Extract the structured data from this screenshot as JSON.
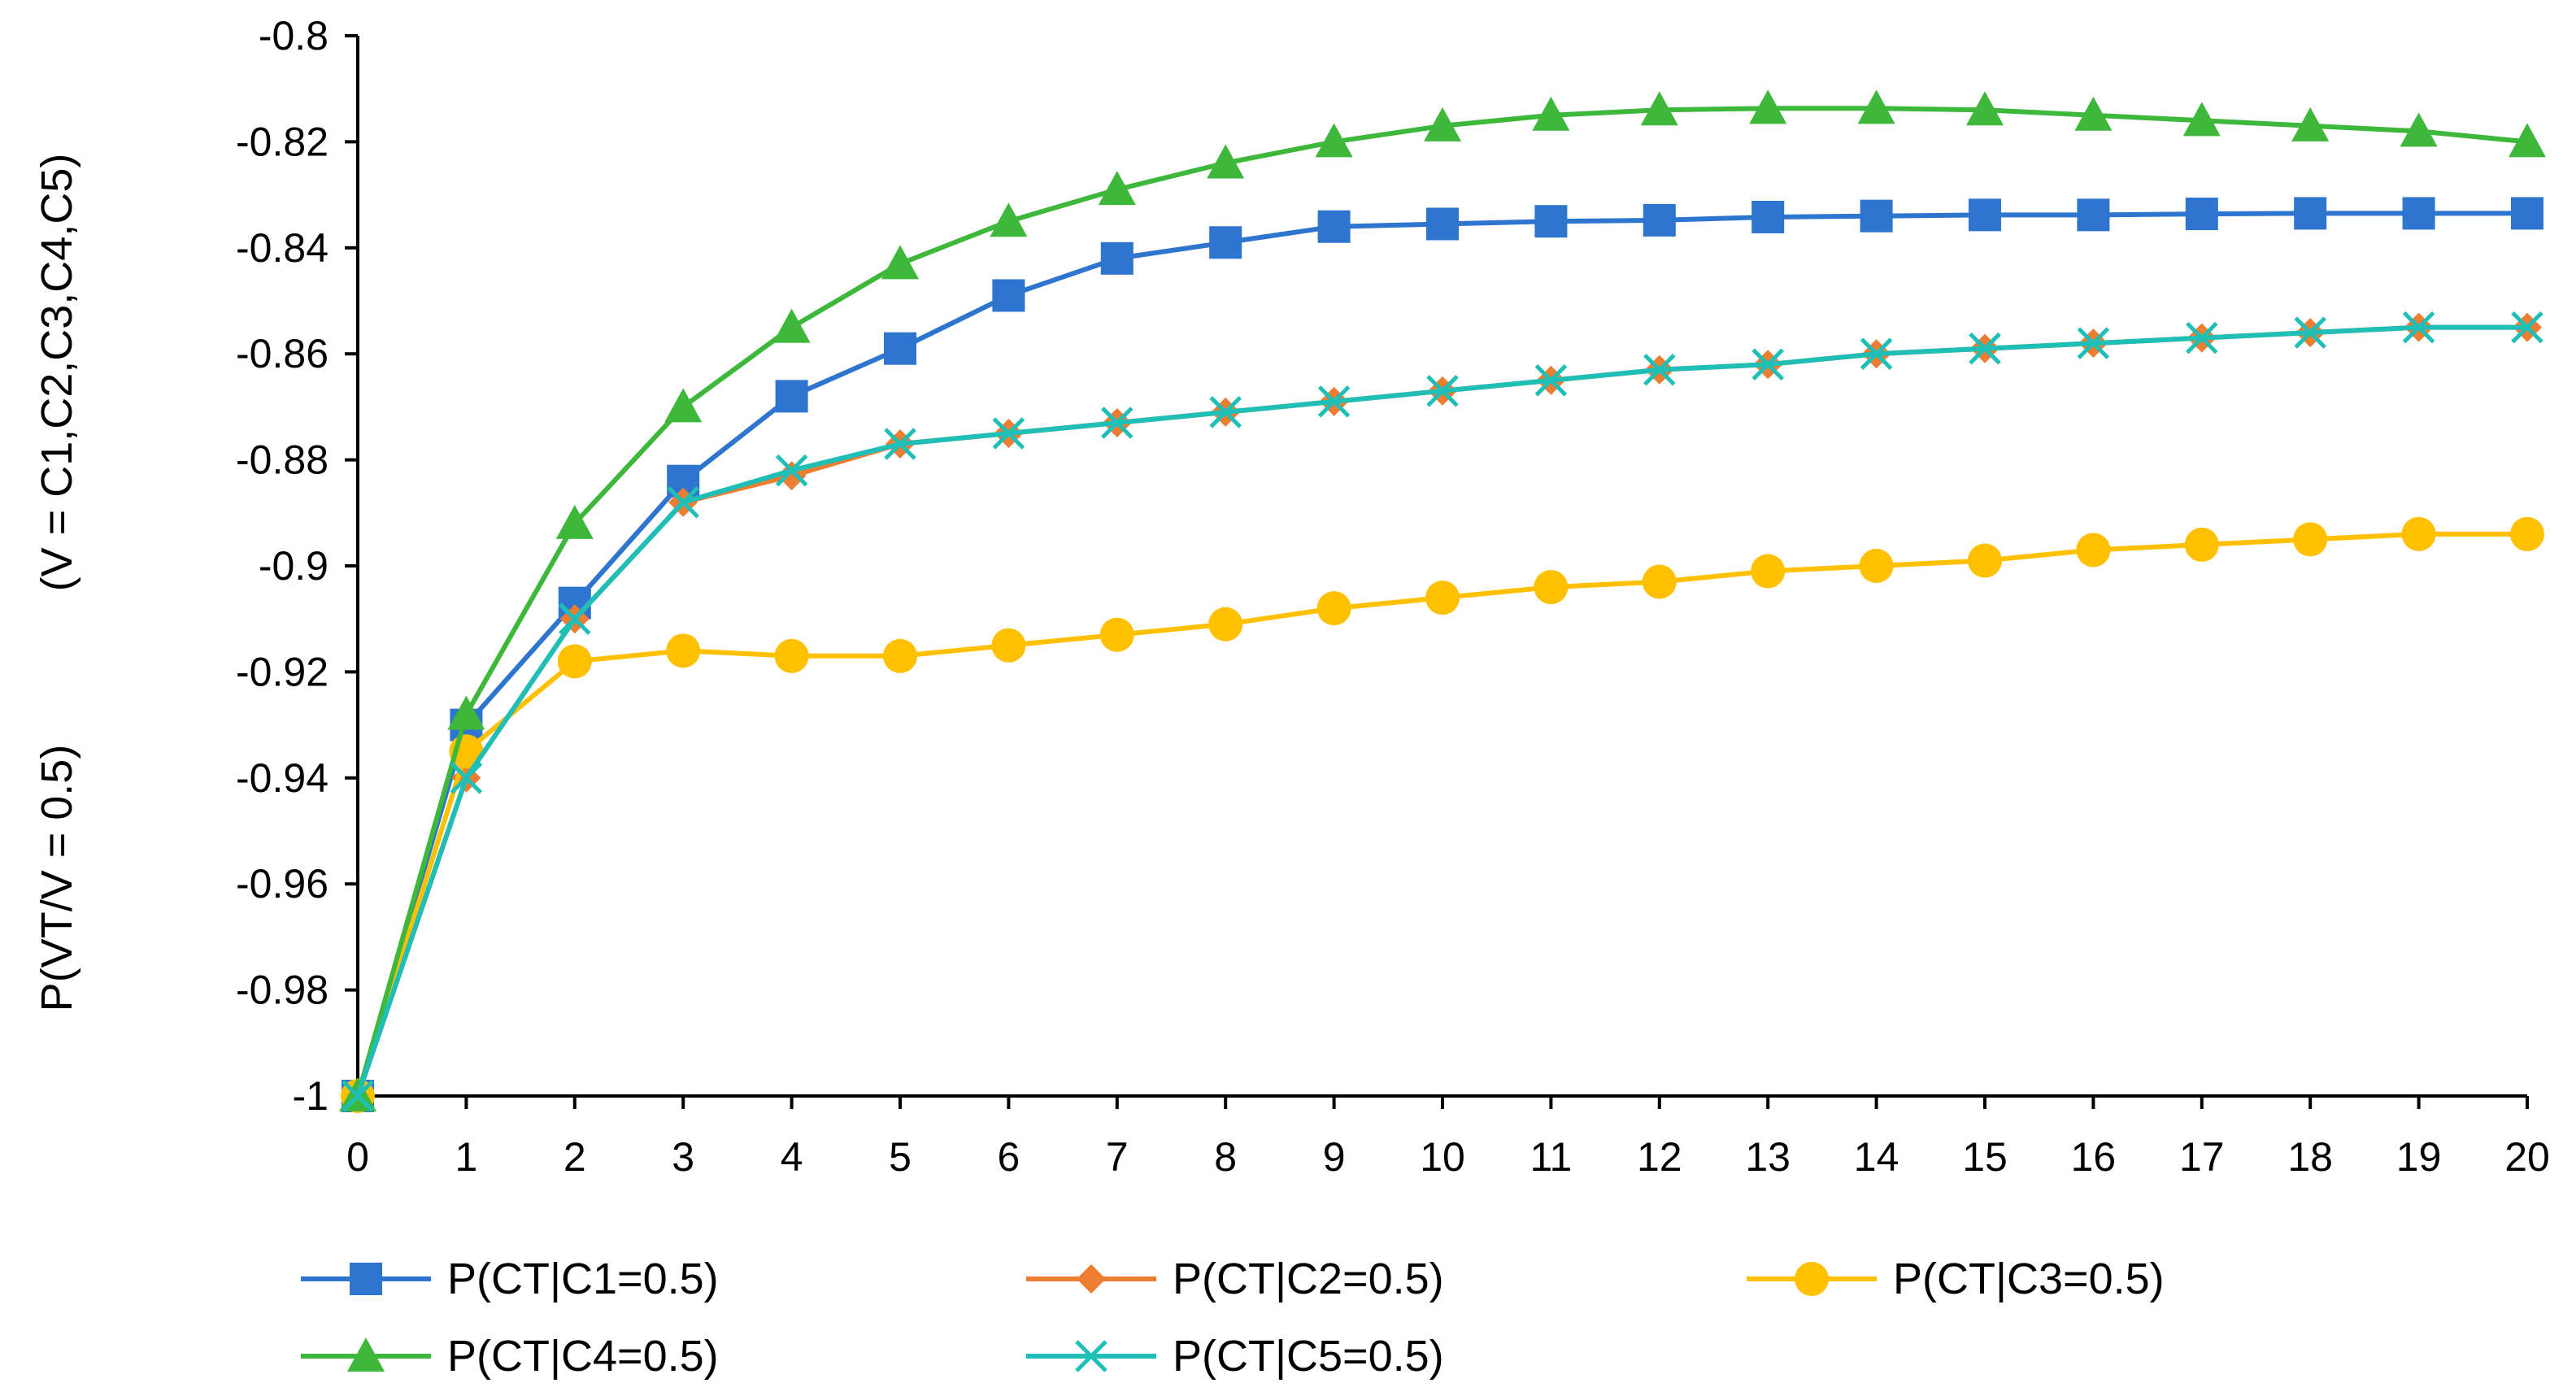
{
  "chart_data": {
    "type": "line",
    "title": "",
    "xlabel": "",
    "ylabel_line1": "P(VT/V = 0.5)",
    "ylabel_line2": "(V = C1,C2,C3,C4,C5)",
    "x": [
      0,
      1,
      2,
      3,
      4,
      5,
      6,
      7,
      8,
      9,
      10,
      11,
      12,
      13,
      14,
      15,
      16,
      17,
      18,
      19,
      20
    ],
    "xlim": [
      0,
      20
    ],
    "ylim": [
      -1,
      -0.8
    ],
    "xticks": [
      "0",
      "1",
      "2",
      "3",
      "4",
      "5",
      "6",
      "7",
      "8",
      "9",
      "10",
      "11",
      "12",
      "13",
      "14",
      "15",
      "16",
      "17",
      "18",
      "19",
      "20"
    ],
    "yticks": [
      {
        "value": -0.8,
        "label": "-0.8"
      },
      {
        "value": -0.82,
        "label": "-0.82"
      },
      {
        "value": -0.84,
        "label": "-0.84"
      },
      {
        "value": -0.86,
        "label": "-0.86"
      },
      {
        "value": -0.88,
        "label": "-0.88"
      },
      {
        "value": -0.9,
        "label": "-0.9"
      },
      {
        "value": -0.92,
        "label": "-0.92"
      },
      {
        "value": -0.94,
        "label": "-0.94"
      },
      {
        "value": -0.96,
        "label": "-0.96"
      },
      {
        "value": -0.98,
        "label": "-0.98"
      },
      {
        "value": -1,
        "label": "-1"
      }
    ],
    "grid": false,
    "legend_position": "bottom",
    "series": [
      {
        "name": "P(CT|C1=0.5)",
        "color": "#2E75D0",
        "marker": "square",
        "values": [
          -1.0,
          -0.93,
          -0.907,
          -0.884,
          -0.868,
          -0.859,
          -0.849,
          -0.842,
          -0.839,
          -0.836,
          -0.8355,
          -0.835,
          -0.8348,
          -0.8342,
          -0.834,
          -0.8338,
          -0.8338,
          -0.8336,
          -0.8335,
          -0.8335,
          -0.8335
        ]
      },
      {
        "name": "P(CT|C2=0.5)",
        "color": "#ED7D31",
        "marker": "diamond",
        "values": [
          -1.0,
          -0.94,
          -0.91,
          -0.888,
          -0.883,
          -0.877,
          -0.875,
          -0.873,
          -0.871,
          -0.869,
          -0.867,
          -0.865,
          -0.863,
          -0.862,
          -0.86,
          -0.859,
          -0.858,
          -0.857,
          -0.856,
          -0.855,
          -0.855
        ]
      },
      {
        "name": "P(CT|C3=0.5)",
        "color": "#FFC000",
        "marker": "circle",
        "values": [
          -1.0,
          -0.935,
          -0.918,
          -0.916,
          -0.917,
          -0.917,
          -0.915,
          -0.913,
          -0.911,
          -0.908,
          -0.906,
          -0.904,
          -0.903,
          -0.901,
          -0.9,
          -0.899,
          -0.897,
          -0.896,
          -0.895,
          -0.894,
          -0.894
        ]
      },
      {
        "name": "P(CT|C4=0.5)",
        "color": "#3DB83B",
        "marker": "triangle",
        "values": [
          -1.0,
          -0.928,
          -0.892,
          -0.87,
          -0.855,
          -0.843,
          -0.835,
          -0.829,
          -0.824,
          -0.82,
          -0.817,
          -0.815,
          -0.814,
          -0.8137,
          -0.8137,
          -0.814,
          -0.815,
          -0.816,
          -0.817,
          -0.818,
          -0.82
        ]
      },
      {
        "name": "P(CT|C5=0.5)",
        "color": "#1FBFB8",
        "marker": "x",
        "values": [
          -1.0,
          -0.94,
          -0.91,
          -0.888,
          -0.882,
          -0.877,
          -0.875,
          -0.873,
          -0.871,
          -0.869,
          -0.867,
          -0.865,
          -0.863,
          -0.862,
          -0.86,
          -0.859,
          -0.858,
          -0.857,
          -0.856,
          -0.855,
          -0.855
        ]
      }
    ]
  }
}
